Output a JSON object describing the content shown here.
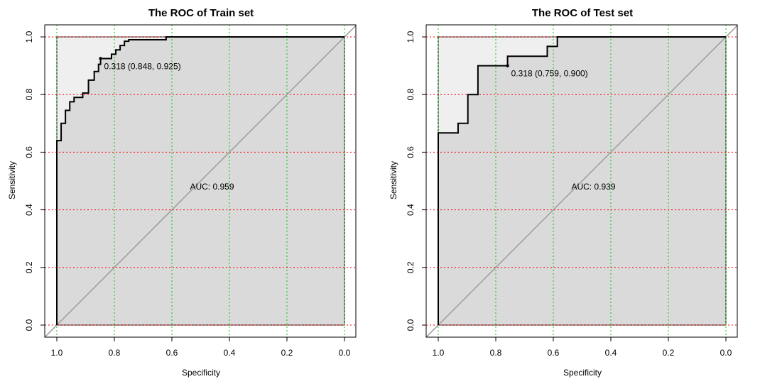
{
  "chart_data": [
    {
      "type": "line",
      "panel": "train",
      "title": "The ROC of Train set",
      "xlabel": "Specificity",
      "ylabel": "Sensitivity",
      "xlim": [
        1.0,
        0.0
      ],
      "ylim": [
        0.0,
        1.0
      ],
      "x_ticks": [
        "1.0",
        "0.8",
        "0.6",
        "0.4",
        "0.2",
        "0.0"
      ],
      "y_ticks": [
        "0.0",
        "0.2",
        "0.4",
        "0.6",
        "0.8",
        "1.0"
      ],
      "x_tick_values": [
        1.0,
        0.8,
        0.6,
        0.4,
        0.2,
        0.0
      ],
      "y_tick_values": [
        0.0,
        0.2,
        0.4,
        0.6,
        0.8,
        1.0
      ],
      "grid_x_color": "#00cc00",
      "grid_y_color": "#ff0000",
      "auc_label": "AUC: 0.959",
      "auc_label_pos": {
        "specificity": 0.5,
        "sensitivity": 0.48
      },
      "threshold_label": "0.318 (0.848, 0.925)",
      "threshold_point": {
        "specificity": 0.848,
        "sensitivity": 0.925
      },
      "roc": {
        "specificity": [
          1.0,
          1.0,
          0.985,
          0.985,
          0.97,
          0.97,
          0.955,
          0.955,
          0.94,
          0.94,
          0.91,
          0.91,
          0.89,
          0.89,
          0.87,
          0.87,
          0.855,
          0.855,
          0.848,
          0.848,
          0.81,
          0.81,
          0.795,
          0.795,
          0.78,
          0.78,
          0.765,
          0.765,
          0.75,
          0.75,
          0.62,
          0.62,
          0.0
        ],
        "sensitivity": [
          0.0,
          0.64,
          0.64,
          0.7,
          0.7,
          0.745,
          0.745,
          0.775,
          0.775,
          0.79,
          0.79,
          0.805,
          0.805,
          0.85,
          0.85,
          0.88,
          0.88,
          0.905,
          0.905,
          0.925,
          0.925,
          0.94,
          0.94,
          0.955,
          0.955,
          0.97,
          0.97,
          0.985,
          0.985,
          0.99,
          0.99,
          1.0,
          1.0
        ]
      }
    },
    {
      "type": "line",
      "panel": "test",
      "title": "The ROC of Test set",
      "xlabel": "Specificity",
      "ylabel": "Sensitivity",
      "xlim": [
        1.0,
        0.0
      ],
      "ylim": [
        0.0,
        1.0
      ],
      "x_ticks": [
        "1.0",
        "0.8",
        "0.6",
        "0.4",
        "0.2",
        "0.0"
      ],
      "y_ticks": [
        "0.0",
        "0.2",
        "0.4",
        "0.6",
        "0.8",
        "1.0"
      ],
      "x_tick_values": [
        1.0,
        0.8,
        0.6,
        0.4,
        0.2,
        0.0
      ],
      "y_tick_values": [
        0.0,
        0.2,
        0.4,
        0.6,
        0.8,
        1.0
      ],
      "grid_x_color": "#00cc00",
      "grid_y_color": "#ff0000",
      "auc_label": "AUC: 0.939",
      "auc_label_pos": {
        "specificity": 0.5,
        "sensitivity": 0.48
      },
      "threshold_label": "0.318 (0.759, 0.900)",
      "threshold_point": {
        "specificity": 0.759,
        "sensitivity": 0.9
      },
      "roc": {
        "specificity": [
          1.0,
          1.0,
          0.931,
          0.931,
          0.897,
          0.897,
          0.862,
          0.862,
          0.759,
          0.759,
          0.621,
          0.621,
          0.586,
          0.586,
          0.0
        ],
        "sensitivity": [
          0.0,
          0.667,
          0.667,
          0.7,
          0.7,
          0.8,
          0.8,
          0.9,
          0.9,
          0.933,
          0.933,
          0.967,
          0.967,
          1.0,
          1.0
        ]
      }
    }
  ]
}
